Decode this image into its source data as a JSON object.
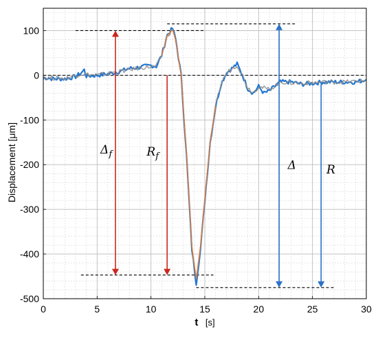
{
  "chart_data": {
    "type": "line",
    "xlabel_main": "t",
    "xlabel_unit": "[s]",
    "ylabel": "Displacement [μm]",
    "xlim": [
      0,
      30
    ],
    "ylim": [
      -500,
      150
    ],
    "xticks": [
      0,
      5,
      10,
      15,
      20,
      25,
      30
    ],
    "yticks": [
      100,
      0,
      -100,
      -200,
      -300,
      -400,
      -500
    ],
    "xtick_labels": [
      "0",
      "5",
      "10",
      "15",
      "20",
      "25",
      "30"
    ],
    "ytick_labels": [
      "100",
      "0",
      "-100",
      "-200",
      "-300",
      "-400",
      "-500"
    ],
    "grid": true,
    "minor_grid": true,
    "series": [
      {
        "color": "#1f77d4",
        "x": [
          0,
          1,
          2,
          3,
          3.5,
          3.8,
          4,
          5,
          6,
          7,
          8,
          9,
          10,
          10.5,
          11,
          11.5,
          12,
          12.3,
          12.8,
          13.3,
          13.8,
          14.2,
          14.6,
          15,
          15.5,
          16,
          16.5,
          17,
          17.5,
          18,
          18.5,
          19,
          19.5,
          20,
          20.5,
          21,
          21.5,
          22,
          23,
          24,
          25,
          26,
          27,
          28,
          29,
          30
        ],
        "y": [
          -5,
          -8,
          -8,
          -3,
          5,
          12,
          -2,
          0,
          3,
          8,
          15,
          18,
          22,
          20,
          45,
          90,
          105,
          80,
          0,
          -180,
          -390,
          -465,
          -390,
          -280,
          -150,
          -70,
          -20,
          5,
          15,
          25,
          0,
          -30,
          -40,
          -25,
          -40,
          -35,
          -25,
          -15,
          -15,
          -20,
          -18,
          -15,
          -15,
          -15,
          -15,
          -10
        ]
      },
      {
        "color": "#8c8c8c",
        "x": [
          0,
          2,
          3.5,
          5,
          7,
          9,
          10.5,
          11,
          11.5,
          12,
          12.3,
          12.8,
          13.3,
          13.8,
          14.2,
          14.6,
          15,
          15.5,
          16,
          16.5,
          17,
          17.5,
          18,
          18.5,
          19,
          19.5,
          20,
          21,
          22,
          24,
          26,
          28,
          30
        ],
        "y": [
          -5,
          -7,
          3,
          0,
          8,
          17,
          20,
          45,
          88,
          102,
          78,
          0,
          -178,
          -385,
          -458,
          -385,
          -278,
          -150,
          -70,
          -20,
          5,
          15,
          23,
          0,
          -28,
          -38,
          -25,
          -32,
          -15,
          -18,
          -15,
          -15,
          -12
        ]
      },
      {
        "color": "#e07b39",
        "x": [
          11,
          11.5,
          12,
          12.3,
          12.8,
          13.3,
          13.8,
          14.2,
          14.6,
          15,
          15.5,
          16
        ],
        "y": [
          44,
          88,
          102,
          78,
          0,
          -176,
          -383,
          -455,
          -383,
          -276,
          -150,
          -70
        ]
      }
    ],
    "reference_lines": [
      {
        "y": 100,
        "x0": 3,
        "x1": 15,
        "color": "#000000"
      },
      {
        "y": 115,
        "x0": 11.5,
        "x1": 23.5,
        "color": "#000000"
      },
      {
        "y": 0,
        "x0": 0,
        "x1": 30,
        "color": "#000000"
      },
      {
        "y": -447,
        "x0": 3.5,
        "x1": 15.8,
        "color": "#000000"
      },
      {
        "y": -475,
        "x0": 14.2,
        "x1": 27,
        "color": "#000000"
      }
    ],
    "arrows": [
      {
        "x": 6.7,
        "y0": 100,
        "y1": -447,
        "color": "#c8281e",
        "double": true
      },
      {
        "x": 11.5,
        "y0": 0,
        "y1": -447,
        "color": "#c8281e",
        "double": false
      },
      {
        "x": 21.9,
        "y0": 115,
        "y1": -475,
        "color": "#2a72c8",
        "double": true
      },
      {
        "x": 25.8,
        "y0": -20,
        "y1": -475,
        "color": "#2a72c8",
        "double": false
      }
    ],
    "annotations": [
      {
        "base": "Δ",
        "sub": "f",
        "x": 5.3,
        "y": -175
      },
      {
        "base": "R",
        "sub": "f",
        "x": 9.6,
        "y": -180
      },
      {
        "base": "Δ",
        "sub": "",
        "x": 22.7,
        "y": -210
      },
      {
        "base": "R",
        "sub": "",
        "x": 26.3,
        "y": -220
      }
    ]
  }
}
